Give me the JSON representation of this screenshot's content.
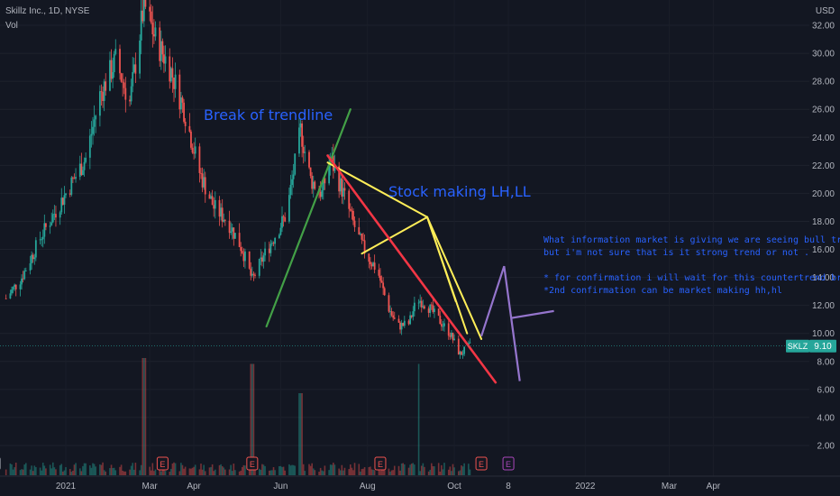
{
  "header": {
    "symbol_line": "Skillz Inc., 1D, NYSE",
    "volume_label": "Vol"
  },
  "currency": "USD",
  "annotations": {
    "trendline_break": "Break of trendline",
    "lh_ll": "Stock making LH,LL",
    "note_lines": [
      "What information market is giving we are seeing bull trend -",
      "but i'm not sure that is it strong trend or not .",
      "",
      "* for confirmation i will wait for this countertrend break .",
      "*2nd confirmation can be market making hh,hl"
    ]
  },
  "last_price": {
    "ticker": "SKLZ",
    "value": "9.10"
  },
  "event_marker_label": "E",
  "colors": {
    "background": "#131722",
    "up": "#26a69a",
    "down": "#ef5350",
    "trend_green": "#43a047",
    "trend_red": "#f23645",
    "yellow": "#ffee58",
    "purple": "#9575cd",
    "annotation_text": "#2962ff"
  },
  "chart_data": {
    "type": "candlestick",
    "y_axis": {
      "scale": "linear",
      "range": [
        0.9,
        33.5
      ],
      "ticks": [
        "32.00",
        "30.00",
        "28.00",
        "26.00",
        "24.00",
        "22.00",
        "20.00",
        "18.00",
        "16.00",
        "14.00",
        "12.00",
        "10.00",
        "8.00",
        "6.00",
        "4.00",
        "2.00"
      ]
    },
    "x_axis": {
      "tick_labels": [
        "2021",
        "Mar",
        "Apr",
        "Jun",
        "Aug",
        "Oct",
        "8",
        "2022",
        "Mar",
        "Apr"
      ]
    },
    "price_path": [
      [
        "2020-11-20",
        12.5
      ],
      [
        "2020-12-01",
        14.0
      ],
      [
        "2020-12-15",
        17.0
      ],
      [
        "2021-01-01",
        20.0
      ],
      [
        "2021-01-15",
        22.5
      ],
      [
        "2021-01-25",
        27.0
      ],
      [
        "2021-02-05",
        29.5
      ],
      [
        "2021-02-15",
        26.5
      ],
      [
        "2021-02-25",
        33.5
      ],
      [
        "2021-03-05",
        31.0
      ],
      [
        "2021-03-15",
        29.0
      ],
      [
        "2021-03-25",
        26.0
      ],
      [
        "2021-04-05",
        21.5
      ],
      [
        "2021-04-15",
        19.0
      ],
      [
        "2021-04-25",
        18.0
      ],
      [
        "2021-05-05",
        16.0
      ],
      [
        "2021-05-12",
        13.8
      ],
      [
        "2021-05-20",
        15.5
      ],
      [
        "2021-05-28",
        17.0
      ],
      [
        "2021-06-05",
        18.5
      ],
      [
        "2021-06-15",
        24.5
      ],
      [
        "2021-06-22",
        21.0
      ],
      [
        "2021-06-30",
        20.0
      ],
      [
        "2021-07-06",
        22.5
      ],
      [
        "2021-07-15",
        20.0
      ],
      [
        "2021-07-25",
        17.0
      ],
      [
        "2021-08-01",
        15.5
      ],
      [
        "2021-08-08",
        14.5
      ],
      [
        "2021-08-15",
        12.0
      ],
      [
        "2021-08-22",
        10.5
      ],
      [
        "2021-08-30",
        10.7
      ],
      [
        "2021-09-05",
        12.5
      ],
      [
        "2021-09-12",
        12.0
      ],
      [
        "2021-09-20",
        11.0
      ],
      [
        "2021-09-28",
        10.0
      ],
      [
        "2021-10-05",
        8.5
      ],
      [
        "2021-10-12",
        9.1
      ]
    ],
    "volume_spikes": [
      [
        "2021-02-25",
        1.0
      ],
      [
        "2021-05-12",
        0.95
      ],
      [
        "2021-06-15",
        0.7
      ],
      [
        "2021-09-05",
        0.95
      ]
    ],
    "drawings": {
      "green_trendline": [
        [
          "2021-05-22",
          10.5
        ],
        [
          "2021-07-20",
          26.0
        ]
      ],
      "red_trendline": [
        [
          "2021-07-04",
          22.7
        ],
        [
          "2021-10-30",
          6.5
        ]
      ],
      "yellow_lines": [
        [
          [
            "2021-07-04",
            22.2
          ],
          [
            "2021-09-12",
            18.3
          ]
        ],
        [
          [
            "2021-07-28",
            15.7
          ],
          [
            "2021-09-12",
            18.3
          ]
        ],
        [
          [
            "2021-09-12",
            18.3
          ],
          [
            "2021-10-20",
            9.6
          ]
        ],
        [
          [
            "2021-09-12",
            18.3
          ],
          [
            "2021-10-10",
            10.0
          ]
        ],
        [
          [
            "2021-09-12",
            18.3
          ],
          [
            "2021-10-02",
            12.3
          ]
        ]
      ],
      "purple_projection": [
        [
          "2021-10-20",
          9.8
        ],
        [
          "2021-11-05",
          14.8
        ],
        [
          "2021-11-16",
          6.6
        ],
        [
          "2021-11-10",
          11.1
        ],
        [
          "2021-12-10",
          11.6
        ]
      ]
    }
  }
}
